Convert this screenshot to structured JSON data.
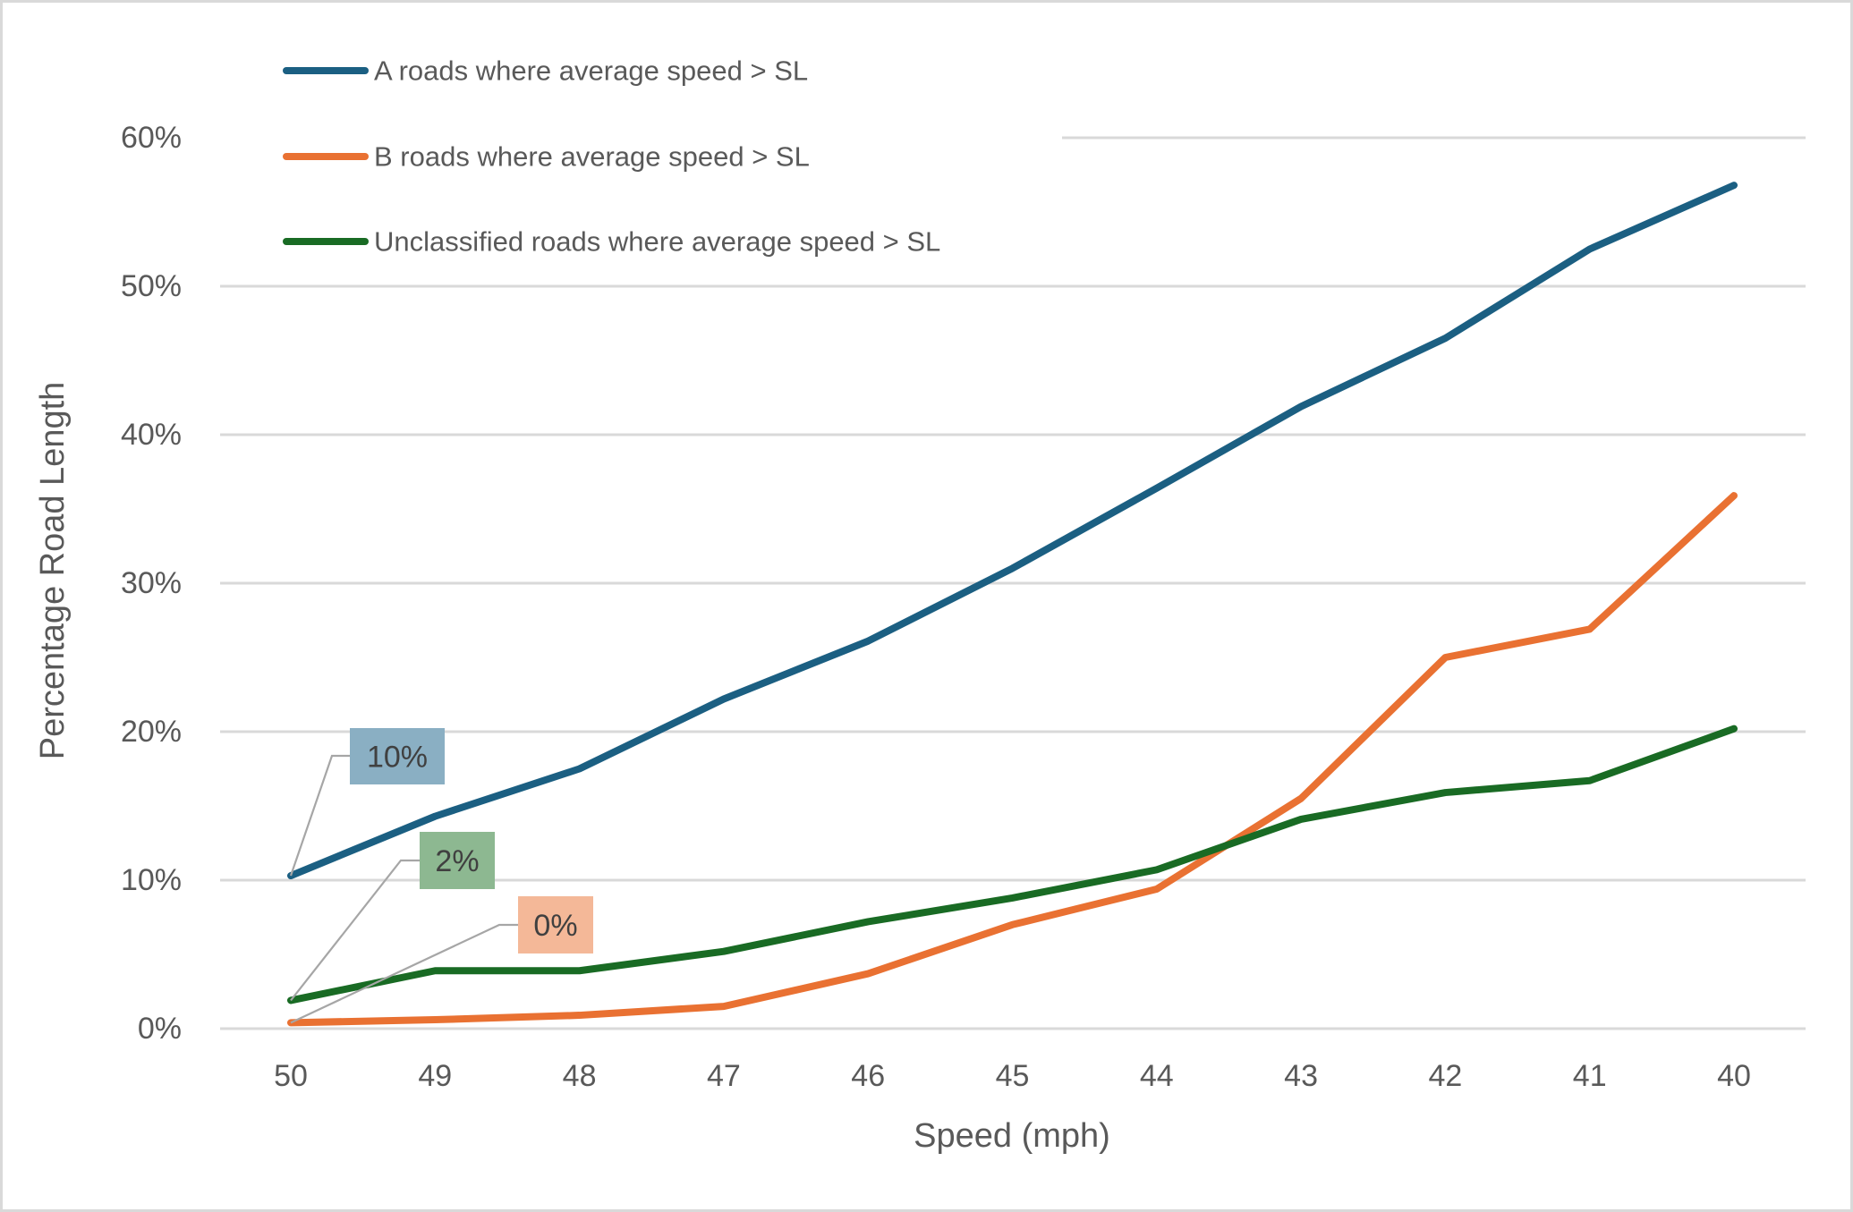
{
  "chart_data": {
    "type": "line",
    "title": "",
    "xlabel": "Speed (mph)",
    "ylabel": "Percentage Road Length",
    "categories": [
      "50",
      "49",
      "48",
      "47",
      "46",
      "45",
      "44",
      "43",
      "42",
      "41",
      "40"
    ],
    "y_ticks": [
      "0%",
      "10%",
      "20%",
      "30%",
      "40%",
      "50%",
      "60%"
    ],
    "y_tick_values": [
      0,
      10,
      20,
      30,
      40,
      50,
      60
    ],
    "ylim": [
      0,
      60
    ],
    "y_unit": "%",
    "grid": true,
    "legend_position": "top-left",
    "series": [
      {
        "name": "A roads where average speed > SL",
        "color": "#1b5f82",
        "label_color": "#8aafc3",
        "values": [
          10.3,
          14.3,
          17.5,
          22.2,
          26.1,
          31.0,
          36.4,
          41.9,
          46.5,
          52.5,
          56.8
        ],
        "data_labels": [
          {
            "index": 0,
            "text": "10%"
          }
        ]
      },
      {
        "name": "B roads where average speed > SL",
        "color": "#e97132",
        "label_color": "#f4b898",
        "values": [
          0.4,
          0.6,
          0.9,
          1.5,
          3.7,
          7.0,
          9.4,
          15.5,
          25.0,
          26.9,
          35.9
        ],
        "data_labels": [
          {
            "index": 0,
            "text": "0%"
          }
        ]
      },
      {
        "name": "Unclassified roads where average speed > SL",
        "color": "#196b24",
        "label_color": "#8db891",
        "values": [
          1.9,
          3.9,
          3.9,
          5.2,
          7.2,
          8.8,
          10.7,
          14.1,
          15.9,
          16.7,
          20.2
        ],
        "data_labels": [
          {
            "index": 0,
            "text": "2%"
          }
        ]
      }
    ]
  }
}
